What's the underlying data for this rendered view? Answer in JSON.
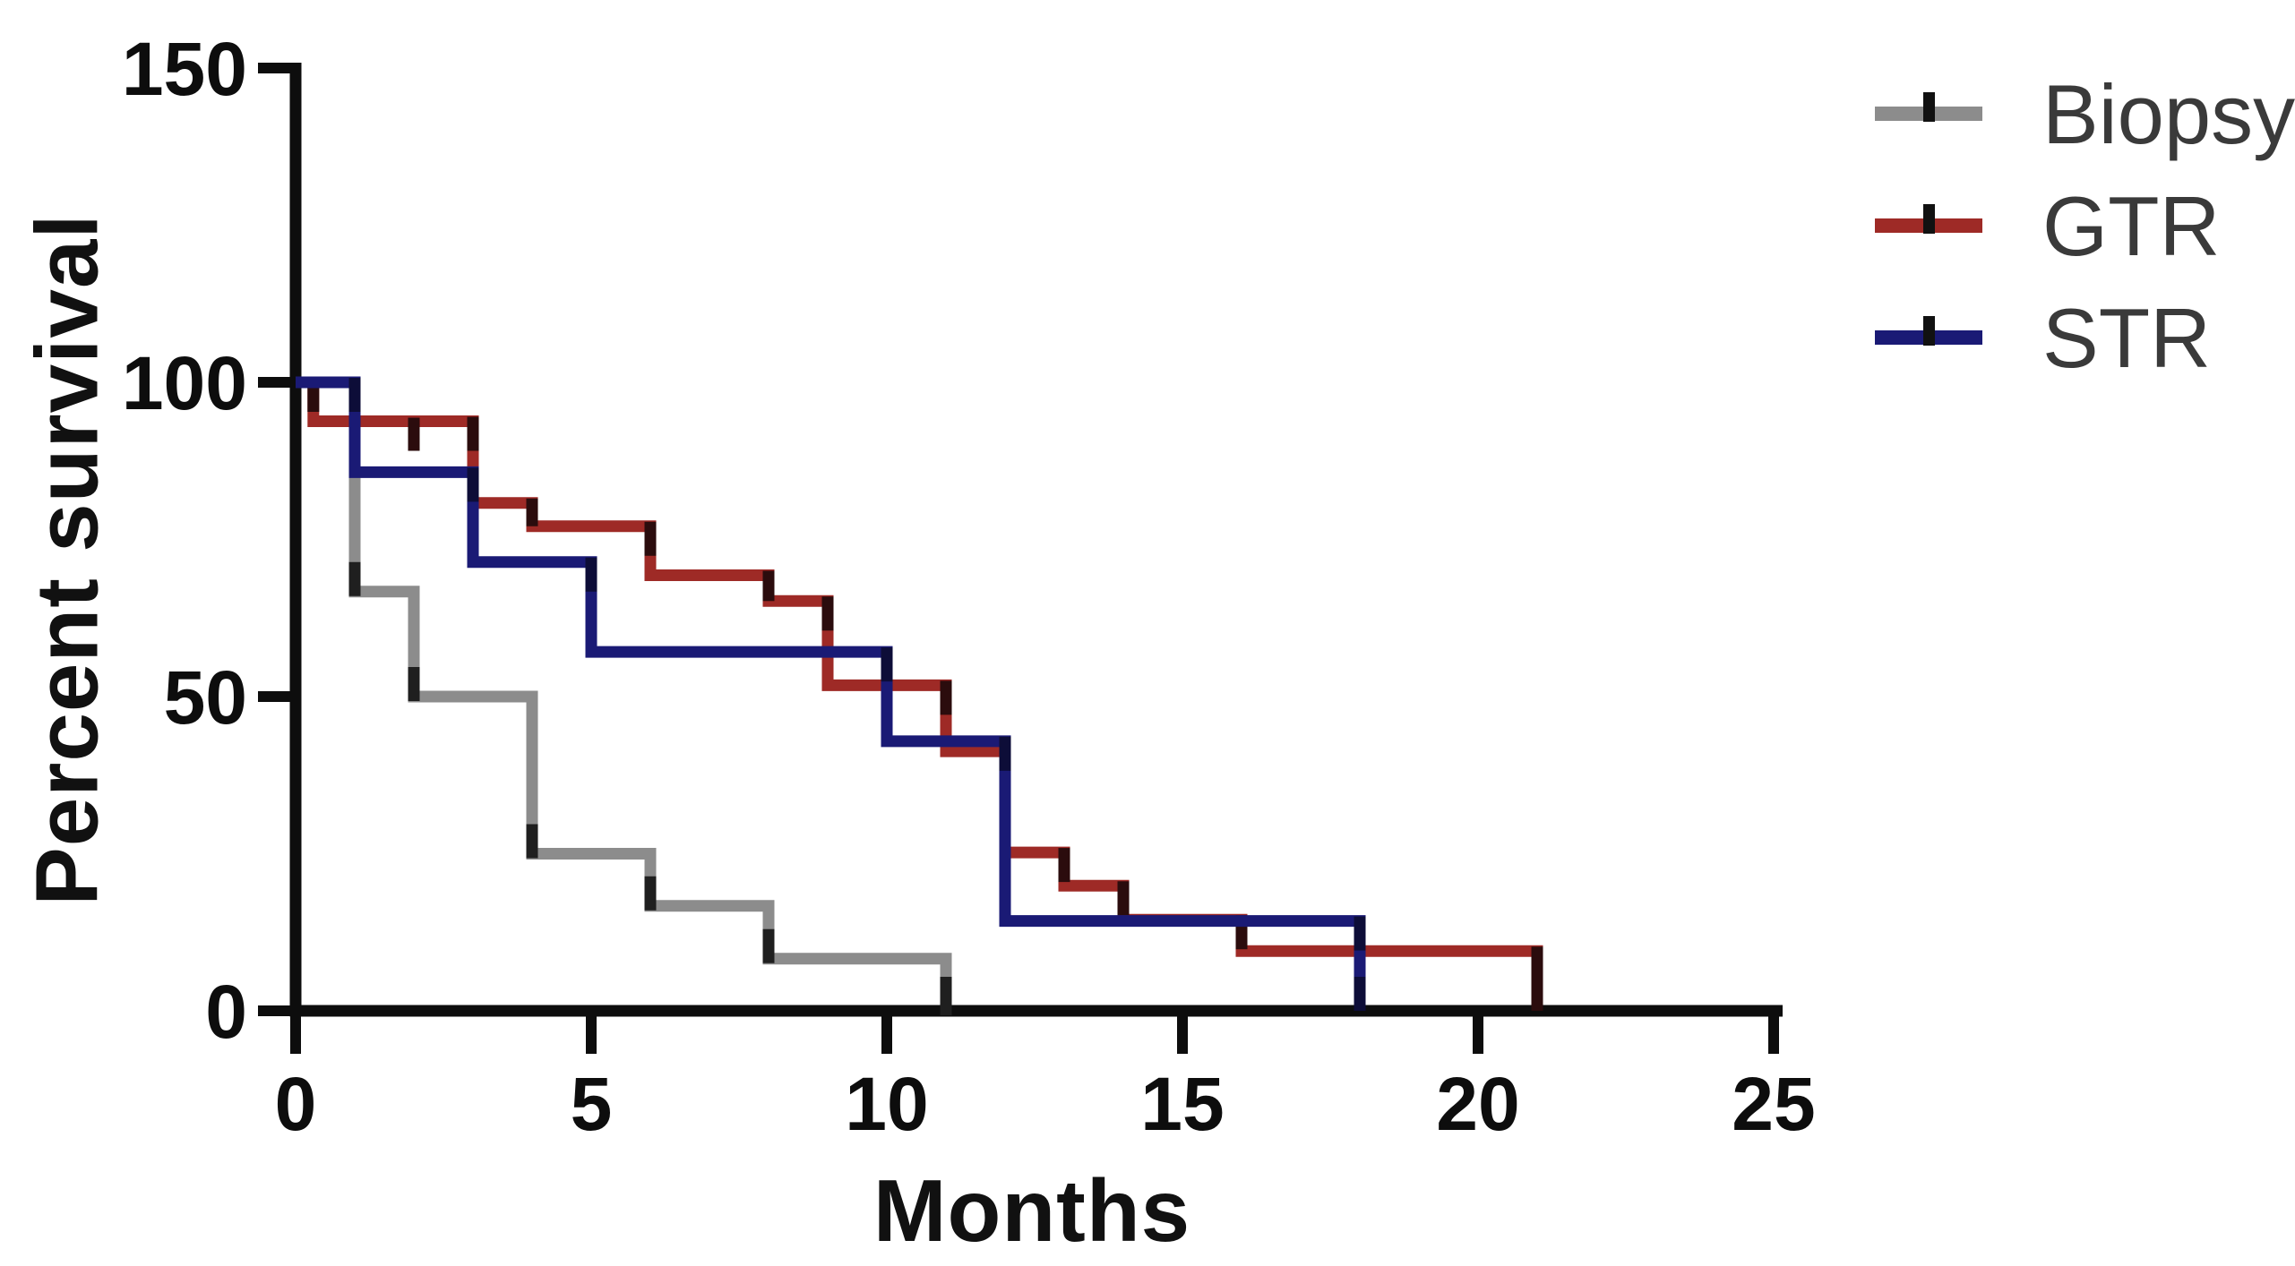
{
  "figure": {
    "background": "#ffffff",
    "axis_color": "#0d0d0d"
  },
  "axes": {
    "x": {
      "label": "Months",
      "min": 0,
      "max": 25,
      "ticks": [
        0,
        5,
        10,
        15,
        20,
        25
      ]
    },
    "y": {
      "label": "Percent survival",
      "min": 0,
      "max": 150,
      "ticks": [
        0,
        50,
        100,
        150
      ]
    }
  },
  "legend": {
    "position": "top-right",
    "swatch": "line-with-censor-tick",
    "items": [
      "Biopsy",
      "GTR",
      "STR"
    ]
  },
  "chart_data": {
    "type": "line",
    "subtype": "kaplan-meier-step",
    "title": "",
    "xlabel": "Months",
    "ylabel": "Percent survival",
    "xlim": [
      0,
      25
    ],
    "ylim": [
      0,
      150
    ],
    "grid": false,
    "legend_position": "top-right",
    "series": [
      {
        "name": "Biopsy",
        "color": "#8c8c8c",
        "tick_color": "#1f1f1f",
        "tick_style": "bottom",
        "censored_months": [],
        "steps": [
          [
            0,
            100
          ],
          [
            1,
            66.7
          ],
          [
            2,
            50
          ],
          [
            4,
            25
          ],
          [
            6,
            16.7
          ],
          [
            8,
            8.3
          ],
          [
            11,
            0
          ]
        ]
      },
      {
        "name": "GTR",
        "color": "#9e2a26",
        "tick_color": "#2b0c0d",
        "tick_style": "top",
        "censored_months": [
          2
        ],
        "steps": [
          [
            0,
            100
          ],
          [
            0.3,
            93.8
          ],
          [
            3,
            80.8
          ],
          [
            4,
            77.1
          ],
          [
            6,
            69.3
          ],
          [
            8,
            65.2
          ],
          [
            9,
            51.8
          ],
          [
            11,
            41.3
          ],
          [
            12,
            25.2
          ],
          [
            13,
            19.9
          ],
          [
            14,
            14.5
          ],
          [
            16,
            9.5
          ],
          [
            21,
            0
          ]
        ]
      },
      {
        "name": "STR",
        "color": "#1a1a75",
        "tick_color": "#0d0d38",
        "tick_style": "top",
        "censored_months": [],
        "steps": [
          [
            0,
            100
          ],
          [
            1,
            85.7
          ],
          [
            3,
            71.4
          ],
          [
            5,
            57.1
          ],
          [
            10,
            42.9
          ],
          [
            12,
            14.3
          ],
          [
            18,
            0
          ]
        ]
      }
    ]
  }
}
